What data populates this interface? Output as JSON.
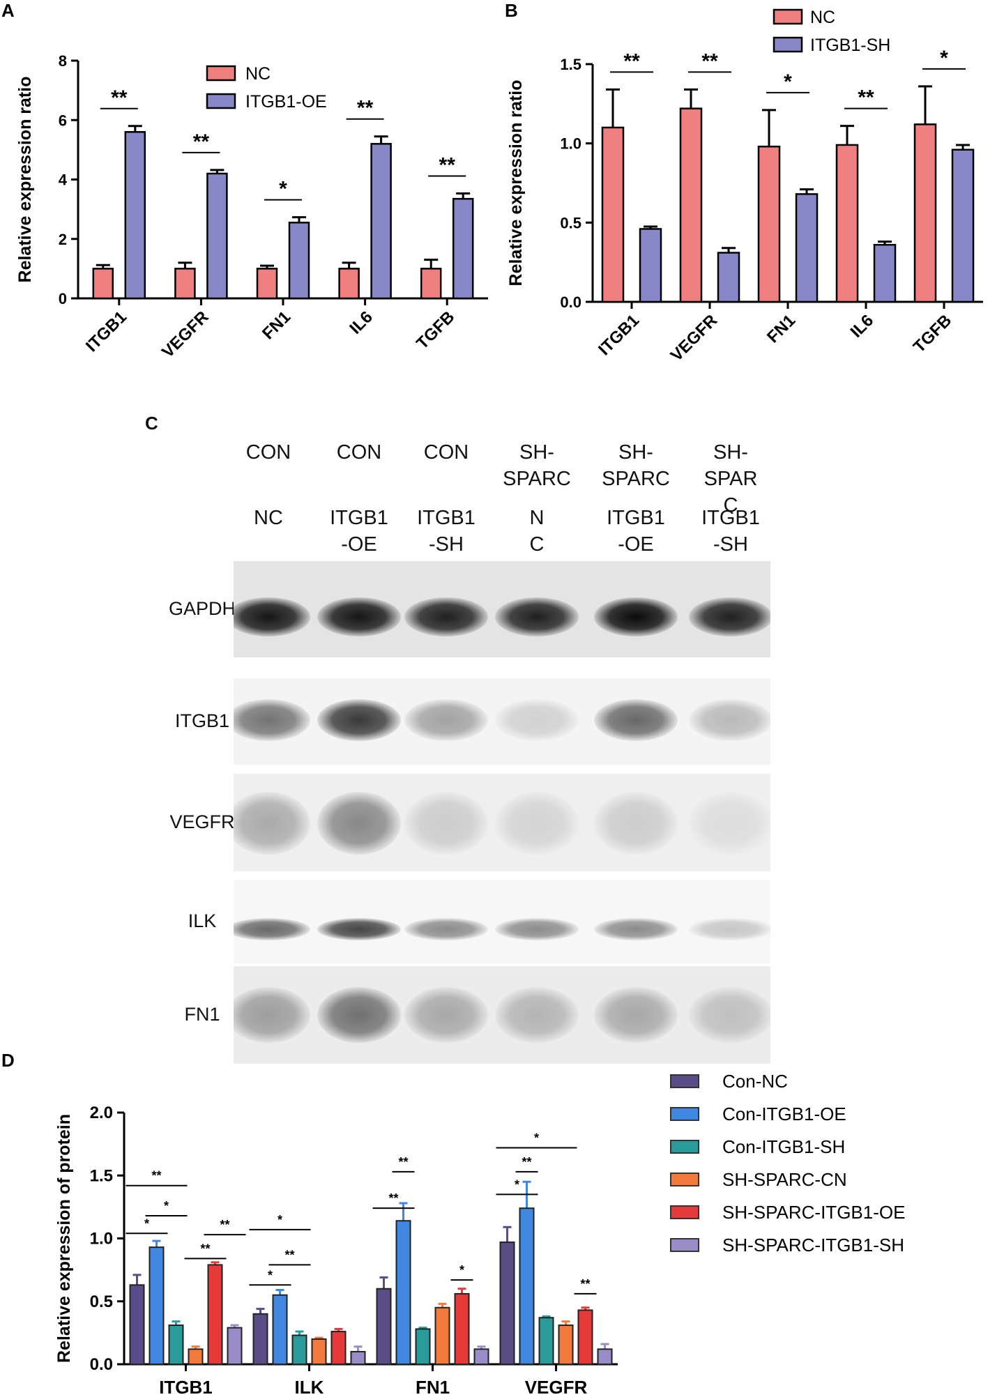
{
  "panels": {
    "a": "A",
    "b": "B",
    "c": "C",
    "d": "D"
  },
  "chart_data": [
    {
      "panel": "A",
      "type": "bar",
      "ylabel": "Relative expression ratio",
      "xlabel": "",
      "ylim": [
        0,
        8
      ],
      "yticks": [
        "0",
        "2",
        "4",
        "6",
        "8"
      ],
      "categories": [
        "ITGB1",
        "VEGFR",
        "FN1",
        "IL6",
        "TGFB"
      ],
      "legend_position": "top-right",
      "series": [
        {
          "name": "NC",
          "color": "#f08080",
          "values": [
            1.0,
            1.0,
            1.0,
            1.0,
            1.0
          ],
          "errors": [
            0.12,
            0.2,
            0.1,
            0.2,
            0.3
          ]
        },
        {
          "name": "ITGB1-OE",
          "color": "#8888c8",
          "values": [
            5.6,
            4.2,
            2.55,
            5.2,
            3.35
          ],
          "errors": [
            0.2,
            0.12,
            0.18,
            0.25,
            0.18
          ]
        }
      ],
      "significance": [
        "**",
        "**",
        "*",
        "**",
        "**"
      ]
    },
    {
      "panel": "B",
      "type": "bar",
      "ylabel": "Relative expression ratio",
      "xlabel": "",
      "ylim": [
        0,
        1.5
      ],
      "yticks": [
        "0.0",
        "0.5",
        "1.0",
        "1.5"
      ],
      "categories": [
        "ITGB1",
        "VEGFR",
        "FN1",
        "IL6",
        "TGFB"
      ],
      "legend_position": "top-right",
      "series": [
        {
          "name": "NC",
          "color": "#f08080",
          "values": [
            1.1,
            1.22,
            0.98,
            0.99,
            1.12
          ],
          "errors": [
            0.24,
            0.12,
            0.23,
            0.12,
            0.24
          ]
        },
        {
          "name": "ITGB1-SH",
          "color": "#8888c8",
          "values": [
            0.46,
            0.31,
            0.68,
            0.36,
            0.96
          ],
          "errors": [
            0.015,
            0.03,
            0.03,
            0.02,
            0.03
          ]
        }
      ],
      "significance": [
        "**",
        "**",
        "*",
        "**",
        "*"
      ]
    },
    {
      "panel": "D",
      "type": "bar",
      "ylabel": "Relative expression of protein",
      "xlabel": "",
      "ylim": [
        0,
        2.0
      ],
      "yticks": [
        "0.0",
        "0.5",
        "1.0",
        "1.5",
        "2.0"
      ],
      "categories": [
        "ITGB1",
        "ILK",
        "FN1",
        "VEGFR"
      ],
      "legend_position": "right",
      "series": [
        {
          "name": "Con-NC",
          "color": "#5a4c86",
          "values": [
            0.63,
            0.4,
            0.6,
            0.97
          ],
          "errors": [
            0.08,
            0.04,
            0.09,
            0.12
          ]
        },
        {
          "name": "Con-ITGB1-OE",
          "color": "#3f87e0",
          "values": [
            0.93,
            0.55,
            1.14,
            1.24
          ],
          "errors": [
            0.05,
            0.04,
            0.14,
            0.21
          ]
        },
        {
          "name": "Con-ITGB1-SH",
          "color": "#2a9b9b",
          "values": [
            0.31,
            0.23,
            0.28,
            0.37
          ],
          "errors": [
            0.03,
            0.03,
            0.01,
            0.01
          ]
        },
        {
          "name": "SH-SPARC-CN",
          "color": "#f27a3c",
          "values": [
            0.12,
            0.2,
            0.45,
            0.31
          ],
          "errors": [
            0.02,
            0.01,
            0.03,
            0.03
          ]
        },
        {
          "name": "SH-SPARC-ITGB1-OE",
          "color": "#e53a3a",
          "values": [
            0.79,
            0.26,
            0.56,
            0.43
          ],
          "errors": [
            0.02,
            0.02,
            0.04,
            0.02
          ]
        },
        {
          "name": "SH-SPARC-ITGB1-SH",
          "color": "#9a8cc6",
          "values": [
            0.29,
            0.1,
            0.12,
            0.12
          ],
          "errors": [
            0.02,
            0.04,
            0.02,
            0.04
          ]
        }
      ],
      "significance": [
        {
          "category": 0,
          "from": 0,
          "to": 1,
          "label": "*",
          "level": 1.04
        },
        {
          "category": 0,
          "from": 1,
          "to": 2,
          "label": "*",
          "level": 1.18
        },
        {
          "category": 0,
          "from": 0,
          "to": 2,
          "label": "**",
          "level": 1.42
        },
        {
          "category": 0,
          "from": 4,
          "to": 5,
          "label": "**",
          "level": 1.03
        },
        {
          "category": 0,
          "from": 3,
          "to": 4,
          "label": "**",
          "level": 0.84
        },
        {
          "category": 1,
          "from": 0,
          "to": 1,
          "label": "*",
          "level": 0.63
        },
        {
          "category": 1,
          "from": 1,
          "to": 2,
          "label": "**",
          "level": 0.79
        },
        {
          "category": 1,
          "from": 0,
          "to": 2,
          "label": "*",
          "level": 1.07
        },
        {
          "category": 2,
          "from": 0,
          "to": 1,
          "label": "**",
          "level": 1.24
        },
        {
          "category": 2,
          "from": 1,
          "to": 1,
          "label": "**",
          "level": 1.53
        },
        {
          "category": 2,
          "from": 4,
          "to": 4,
          "label": "*",
          "level": 0.67
        },
        {
          "category": 3,
          "from": 0,
          "to": 1,
          "label": "*",
          "level": 1.35
        },
        {
          "category": 3,
          "from": 1,
          "to": 1,
          "label": "**",
          "level": 1.53
        },
        {
          "category": 3,
          "from": 0,
          "to": 3,
          "label": "*",
          "level": 1.72
        },
        {
          "category": 3,
          "from": 4,
          "to": 4,
          "label": "**",
          "level": 0.56
        }
      ]
    }
  ],
  "western_blot": {
    "lanes": [
      {
        "line1": "CON",
        "line2": "",
        "line3": "",
        "group1": "NC",
        "group2": ""
      },
      {
        "line1": "CON",
        "line2": "",
        "line3": "",
        "group1": "ITGB1",
        "group2": "-OE"
      },
      {
        "line1": "CON",
        "line2": "",
        "line3": "",
        "group1": "ITGB1",
        "group2": "-SH"
      },
      {
        "line1": "SH-",
        "line2": "SPARC",
        "line3": "",
        "group1": "N",
        "group2": "C"
      },
      {
        "line1": "SH-",
        "line2": "SPARC",
        "line3": "",
        "group1": "ITGB1",
        "group2": "-OE"
      },
      {
        "line1": "SH-",
        "line2": "SPAR",
        "line3": "C",
        "group1": "ITGB1",
        "group2": "-SH"
      }
    ],
    "proteins": [
      {
        "name": "GAPDH",
        "intensities": [
          0.95,
          0.95,
          0.9,
          0.9,
          1.0,
          0.9
        ]
      },
      {
        "name": "ITGB1",
        "intensities": [
          0.55,
          0.8,
          0.35,
          0.15,
          0.6,
          0.25
        ]
      },
      {
        "name": "VEGFR",
        "intensities": [
          0.3,
          0.45,
          0.15,
          0.12,
          0.15,
          0.08
        ]
      },
      {
        "name": "ILK",
        "intensities": [
          0.6,
          0.75,
          0.45,
          0.45,
          0.45,
          0.2
        ]
      },
      {
        "name": "FN1",
        "intensities": [
          0.35,
          0.55,
          0.3,
          0.25,
          0.3,
          0.2
        ]
      }
    ]
  }
}
